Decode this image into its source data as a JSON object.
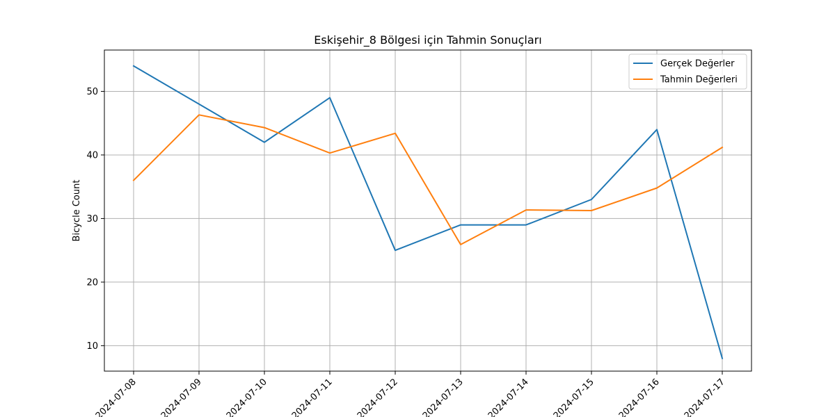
{
  "chart_data": {
    "type": "line",
    "title": "Eskişehir_8 Bölgesi için Tahmin Sonuçları",
    "xlabel": "",
    "ylabel": "Bicycle Count",
    "categories": [
      "2024-07-08",
      "2024-07-09",
      "2024-07-10",
      "2024-07-11",
      "2024-07-12",
      "2024-07-13",
      "2024-07-14",
      "2024-07-15",
      "2024-07-16",
      "2024-07-17"
    ],
    "yticks": [
      "10",
      "20",
      "30",
      "40",
      "50"
    ],
    "ylim": [
      6,
      56.5
    ],
    "grid": true,
    "legend_position": "top-right",
    "series": [
      {
        "name": "Gerçek Değerler",
        "color": "#1f77b4",
        "values": [
          54,
          48,
          42,
          49,
          25,
          29,
          29,
          33,
          44,
          8
        ]
      },
      {
        "name": "Tahmin Değerleri",
        "color": "#ff7f0e",
        "values": [
          36,
          46.3,
          44.3,
          40.3,
          43.4,
          25.9,
          31.35,
          31.25,
          34.8,
          41.2
        ]
      }
    ]
  }
}
